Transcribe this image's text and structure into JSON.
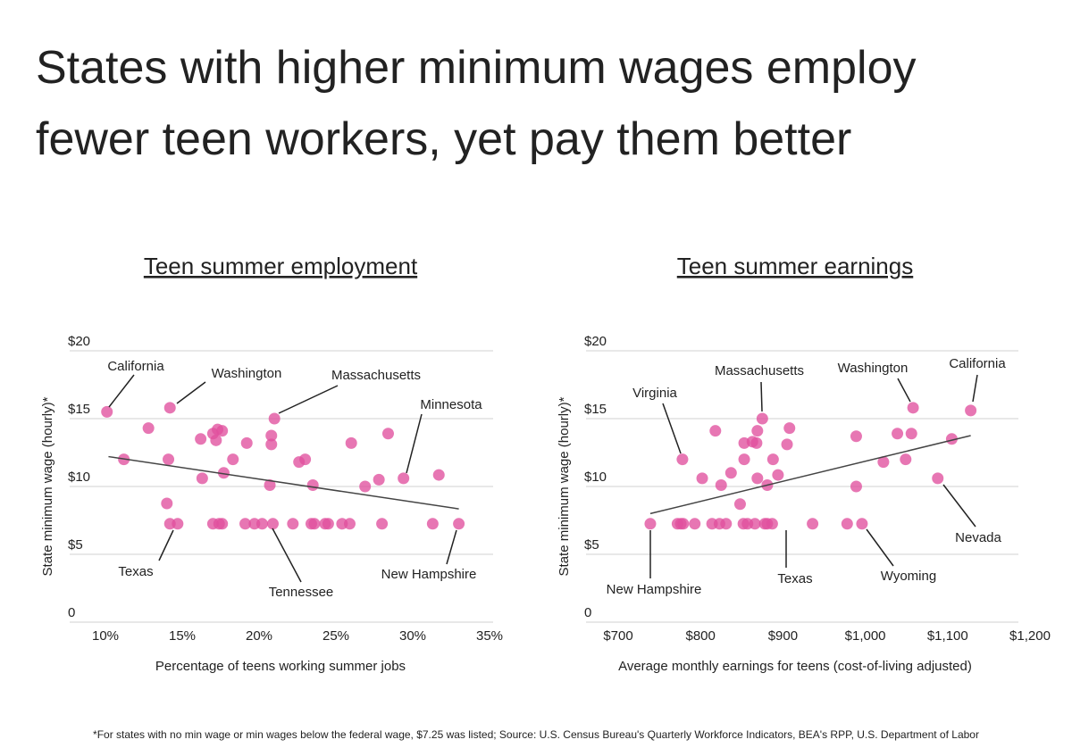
{
  "title": "States with higher minimum wages employ fewer teen workers, yet pay them better",
  "footnote": "*For states with no min wage or min wages below the federal wage, $7.25 was listed; Source: U.S. Census Bureau's Quarterly Workforce Indicators, BEA's RPP, U.S. Department of Labor",
  "chart_data": [
    {
      "type": "scatter",
      "title": "Teen summer employment",
      "x_label": "Percentage of teens working summer jobs",
      "y_label": "State minimum wage (hourly)*",
      "color": "#e0509d",
      "x": [
        10.1,
        11.2,
        12.8,
        14.2,
        14.1,
        14.0,
        14.2,
        14.7,
        16.2,
        16.3,
        17.0,
        17.3,
        17.6,
        17.2,
        17.7,
        18.3,
        19.2,
        17.0,
        17.4,
        17.6,
        19.1,
        19.7,
        20.2,
        20.9,
        20.8,
        20.8,
        20.7,
        21.0,
        22.2,
        22.6,
        23.0,
        23.4,
        23.6,
        23.5,
        24.3,
        24.5,
        25.4,
        26.0,
        25.9,
        26.9,
        27.8,
        28.0,
        28.4,
        29.4,
        31.3,
        31.7,
        33.0
      ],
      "values": [
        15.5,
        12.0,
        14.3,
        15.8,
        12.0,
        8.75,
        7.25,
        7.25,
        13.5,
        10.6,
        13.9,
        14.2,
        14.1,
        13.4,
        11.0,
        12.0,
        13.2,
        7.25,
        7.25,
        7.25,
        7.25,
        7.25,
        7.25,
        7.25,
        13.75,
        13.1,
        10.1,
        15.0,
        7.25,
        11.8,
        12.0,
        7.25,
        7.25,
        10.1,
        7.25,
        7.25,
        7.25,
        13.2,
        7.25,
        10.0,
        10.5,
        7.25,
        13.9,
        10.6,
        7.25,
        10.85,
        7.25
      ],
      "trend": {
        "x": [
          10.2,
          33.0
        ],
        "values": [
          12.2,
          8.35
        ],
        "color": "#444444"
      },
      "annotations": [
        "California",
        "Washington",
        "Massachusetts",
        "Minnesota",
        "Texas",
        "Tennessee",
        "New Hampshire"
      ],
      "xlim": [
        10,
        35
      ],
      "xticks": [
        {
          "value": 10,
          "label": "10%"
        },
        {
          "value": 15,
          "label": "15%"
        },
        {
          "value": 20,
          "label": "20%"
        },
        {
          "value": 25,
          "label": "25%"
        },
        {
          "value": 30,
          "label": "30%"
        },
        {
          "value": 35,
          "label": "35%"
        }
      ],
      "ylim": [
        0,
        20
      ],
      "yticks": [
        0,
        {
          "value": 5,
          "label": "$5"
        },
        {
          "value": 10,
          "label": "$10"
        },
        {
          "value": 15,
          "label": "$15"
        },
        {
          "value": 20,
          "label": "$20"
        }
      ],
      "grid": true
    },
    {
      "type": "scatter",
      "title": "Teen summer earnings",
      "x_label": "Average monthly earnings for teens (cost-of-living adjusted)",
      "y_label": "State minimum wage (hourly)*",
      "color": "#e0509d",
      "x": [
        739,
        772,
        776,
        779,
        778,
        793,
        802,
        814,
        818,
        825,
        823,
        831,
        837,
        848,
        853,
        853,
        852,
        857,
        863,
        868,
        869,
        875,
        869,
        866,
        878,
        881,
        881,
        888,
        887,
        894,
        905,
        908,
        936,
        978,
        989,
        989,
        996,
        1022,
        1039,
        1049,
        1056,
        1058,
        1088,
        1105,
        1128
      ],
      "values": [
        7.25,
        7.25,
        7.25,
        7.25,
        12.0,
        7.25,
        10.6,
        7.25,
        14.1,
        10.1,
        7.25,
        7.25,
        11.0,
        8.7,
        13.2,
        12.0,
        7.25,
        7.25,
        13.3,
        13.2,
        14.1,
        15.0,
        10.6,
        7.25,
        7.25,
        7.25,
        10.1,
        12.0,
        7.25,
        10.85,
        13.1,
        14.3,
        7.25,
        7.25,
        13.7,
        10.0,
        7.25,
        11.8,
        13.9,
        12.0,
        13.9,
        15.8,
        10.6,
        13.5,
        15.6
      ],
      "trend": {
        "x": [
          739,
          1128
        ],
        "values": [
          8.0,
          13.75
        ],
        "color": "#444444"
      },
      "annotations": [
        "Virginia",
        "Massachusetts",
        "Washington",
        "California",
        "New Hampshire",
        "Texas",
        "Wyoming",
        "Nevada"
      ],
      "xlim": [
        700,
        1200
      ],
      "xticks": [
        {
          "value": 700,
          "label": "$700"
        },
        {
          "value": 800,
          "label": "$800"
        },
        {
          "value": 900,
          "label": "$900"
        },
        {
          "value": 1000,
          "label": "$1,000"
        },
        {
          "value": 1100,
          "label": "$1,100"
        },
        {
          "value": 1200,
          "label": "$1,200"
        }
      ],
      "ylim": [
        0,
        20
      ],
      "yticks": [
        0,
        {
          "value": 5,
          "label": "$5"
        },
        {
          "value": 10,
          "label": "$10"
        },
        {
          "value": 15,
          "label": "$15"
        },
        {
          "value": 20,
          "label": "$20"
        }
      ],
      "grid": true
    }
  ]
}
